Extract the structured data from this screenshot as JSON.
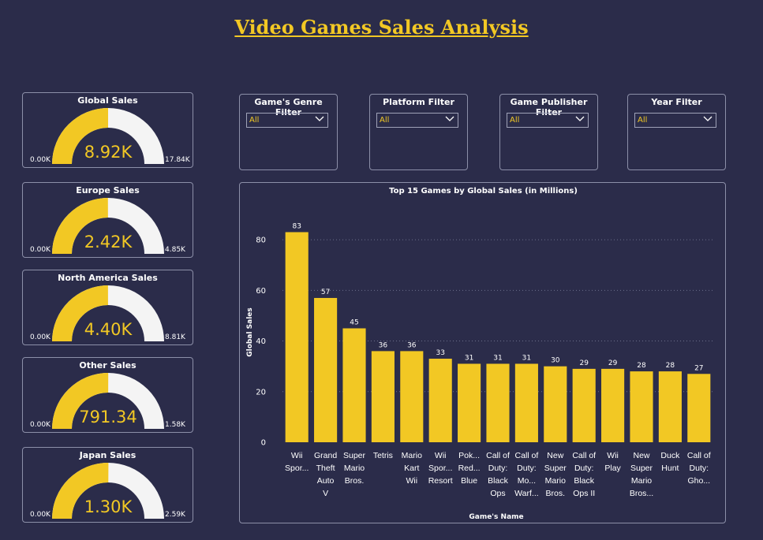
{
  "title": "Video Games Sales Analysis",
  "theme": {
    "accent": "#f2c824",
    "track": "#f4f4f4",
    "background": "#2b2c4a",
    "border": "#8c8fa8"
  },
  "gauges": [
    {
      "title": "Global Sales",
      "value": 8920,
      "value_label": "8.92K",
      "min_label": "0.00K",
      "max": 17840,
      "max_label": "17.84K"
    },
    {
      "title": "Europe Sales",
      "value": 2420,
      "value_label": "2.42K",
      "min_label": "0.00K",
      "max": 4850,
      "max_label": "4.85K"
    },
    {
      "title": "North America Sales",
      "value": 4400,
      "value_label": "4.40K",
      "min_label": "0.00K",
      "max": 8810,
      "max_label": "8.81K"
    },
    {
      "title": "Other Sales",
      "value": 791.34,
      "value_label": "791.34",
      "min_label": "0.00K",
      "max": 1580,
      "max_label": "1.58K"
    },
    {
      "title": "Japan Sales",
      "value": 1300,
      "value_label": "1.30K",
      "min_label": "0.00K",
      "max": 2590,
      "max_label": "2.59K"
    }
  ],
  "filters": [
    {
      "title": "Game's Genre Filter",
      "selected": "All"
    },
    {
      "title": "Platform Filter",
      "selected": "All"
    },
    {
      "title": "Game Publisher Filter",
      "selected": "All"
    },
    {
      "title": "Year Filter",
      "selected": "All"
    }
  ],
  "chart_data": {
    "type": "bar",
    "title": "Top 15 Games by Global Sales (in Millions)",
    "xlabel": "Game's Name",
    "ylabel": "Global Sales",
    "ylim": [
      0,
      90
    ],
    "yticks": [
      0,
      20,
      40,
      60,
      80
    ],
    "grid": true,
    "categories": [
      [
        "Wii",
        "Spor..."
      ],
      [
        "Grand",
        "Theft",
        "Auto",
        "V"
      ],
      [
        "Super",
        "Mario",
        "Bros."
      ],
      [
        "Tetris"
      ],
      [
        "Mario",
        "Kart",
        "Wii"
      ],
      [
        "Wii",
        "Spor...",
        "Resort"
      ],
      [
        "Pok...",
        "Red...",
        "Blue"
      ],
      [
        "Call of",
        "Duty:",
        "Black",
        "Ops"
      ],
      [
        "Call of",
        "Duty:",
        "Mo...",
        "Warf..."
      ],
      [
        "New",
        "Super",
        "Mario",
        "Bros."
      ],
      [
        "Call of",
        "Duty:",
        "Black",
        "Ops II"
      ],
      [
        "Wii",
        "Play"
      ],
      [
        "New",
        "Super",
        "Mario",
        "Bros..."
      ],
      [
        "Duck",
        "Hunt"
      ],
      [
        "Call of",
        "Duty:",
        "Gho..."
      ]
    ],
    "values": [
      83,
      57,
      45,
      36,
      36,
      33,
      31,
      31,
      31,
      30,
      29,
      29,
      28,
      28,
      27
    ],
    "data_labels": [
      "83",
      "57",
      "45",
      "36",
      "36",
      "33",
      "31",
      "31",
      "31",
      "30",
      "29",
      "29",
      "28",
      "28",
      "27"
    ]
  }
}
